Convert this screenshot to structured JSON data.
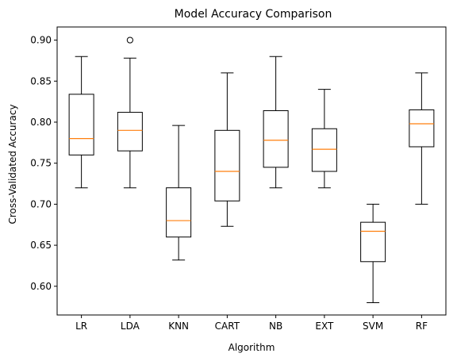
{
  "chart_data": {
    "type": "box",
    "title": "Model Accuracy Comparison",
    "xlabel": "Algorithm",
    "ylabel": "Cross-Validated Accuracy",
    "ylim": [
      0.565,
      0.916
    ],
    "y_ticks": [
      "0.60",
      "0.65",
      "0.70",
      "0.75",
      "0.80",
      "0.85",
      "0.90"
    ],
    "grid": false,
    "colors": {
      "box": "#000000",
      "median": "#ff7f0e",
      "background": "#ffffff"
    },
    "categories": [
      "LR",
      "LDA",
      "KNN",
      "CART",
      "NB",
      "EXT",
      "SVM",
      "RF"
    ],
    "boxes": [
      {
        "name": "LR",
        "whisker_low": 0.72,
        "q1": 0.76,
        "median": 0.78,
        "q3": 0.834,
        "whisker_high": 0.88,
        "outliers": []
      },
      {
        "name": "LDA",
        "whisker_low": 0.72,
        "q1": 0.765,
        "median": 0.79,
        "q3": 0.812,
        "whisker_high": 0.878,
        "outliers": [
          0.9
        ]
      },
      {
        "name": "KNN",
        "whisker_low": 0.632,
        "q1": 0.66,
        "median": 0.68,
        "q3": 0.72,
        "whisker_high": 0.796,
        "outliers": []
      },
      {
        "name": "CART",
        "whisker_low": 0.673,
        "q1": 0.704,
        "median": 0.74,
        "q3": 0.79,
        "whisker_high": 0.86,
        "outliers": []
      },
      {
        "name": "NB",
        "whisker_low": 0.72,
        "q1": 0.745,
        "median": 0.778,
        "q3": 0.814,
        "whisker_high": 0.88,
        "outliers": []
      },
      {
        "name": "EXT",
        "whisker_low": 0.72,
        "q1": 0.74,
        "median": 0.767,
        "q3": 0.792,
        "whisker_high": 0.84,
        "outliers": []
      },
      {
        "name": "SVM",
        "whisker_low": 0.58,
        "q1": 0.63,
        "median": 0.667,
        "q3": 0.678,
        "whisker_high": 0.7,
        "outliers": []
      },
      {
        "name": "RF",
        "whisker_low": 0.7,
        "q1": 0.77,
        "median": 0.798,
        "q3": 0.815,
        "whisker_high": 0.86,
        "outliers": []
      }
    ]
  }
}
